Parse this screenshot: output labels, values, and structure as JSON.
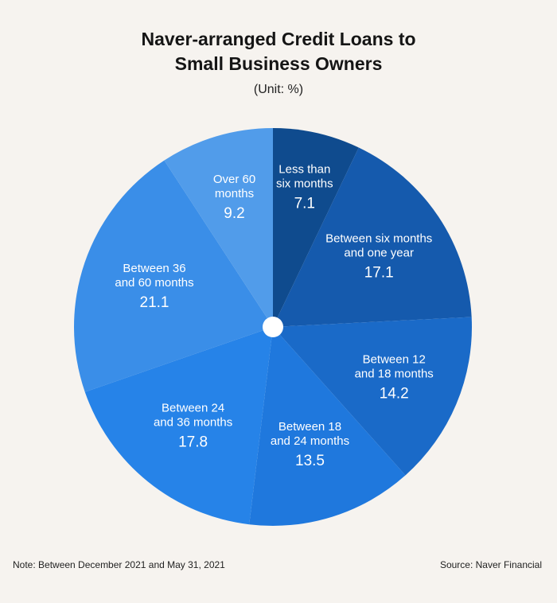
{
  "chart_data": {
    "type": "pie",
    "title": "Naver-arranged Credit Loans to Small Business Owners",
    "title_lines": [
      "Naver-arranged Credit Loans to",
      "Small Business Owners"
    ],
    "subtitle": "(Unit: %)",
    "slices": [
      {
        "label": "Less than six months",
        "label_lines": [
          "Less than",
          "six months"
        ],
        "value": 7.1,
        "color": "#0f4b8e"
      },
      {
        "label": "Between six months and one year",
        "label_lines": [
          "Between six months",
          "and one year"
        ],
        "value": 17.1,
        "color": "#155aad"
      },
      {
        "label": "Between 12 and 18 months",
        "label_lines": [
          "Between 12",
          "and 18 months"
        ],
        "value": 14.2,
        "color": "#1a6ac8"
      },
      {
        "label": "Between 18 and 24 months",
        "label_lines": [
          "Between 18",
          "and 24 months"
        ],
        "value": 13.5,
        "color": "#1f78dd"
      },
      {
        "label": "Between 24 and 36 months",
        "label_lines": [
          "Between 24",
          "and 36 months"
        ],
        "value": 17.8,
        "color": "#2683e8"
      },
      {
        "label": "Between 36 and 60 months",
        "label_lines": [
          "Between 36",
          "and 60 months"
        ],
        "value": 21.1,
        "color": "#3a8ee8"
      },
      {
        "label": "Over 60 months",
        "label_lines": [
          "Over 60",
          "months"
        ],
        "value": 9.2,
        "color": "#519cea"
      }
    ]
  },
  "footer": {
    "note": "Note: Between December 2021 and May 31, 2021",
    "source": "Source: Naver Financial"
  }
}
